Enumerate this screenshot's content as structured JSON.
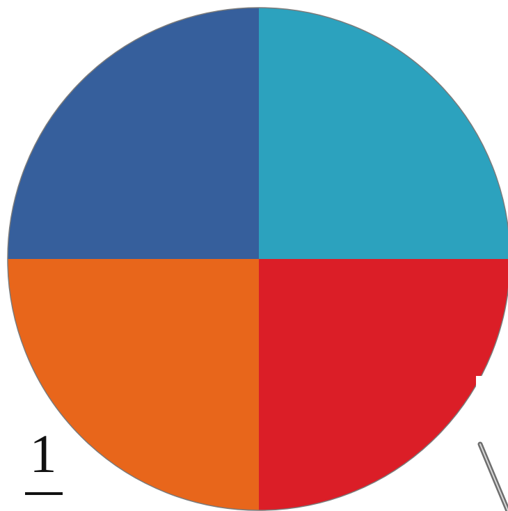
{
  "circle": {
    "quadrants": [
      {
        "name": "top-left",
        "color": "#365F9C"
      },
      {
        "name": "top-right",
        "color": "#2CA2BE"
      },
      {
        "name": "bottom-right",
        "color": "#DB1E27"
      },
      {
        "name": "bottom-left",
        "color": "#E8661B"
      }
    ],
    "outline_color": "#7a7a7a"
  },
  "fraction": {
    "numerator": "1",
    "bar_color": "#111111"
  },
  "pointer": {
    "color": "#6e6e6e",
    "icon": "needle-pointer-icon"
  }
}
